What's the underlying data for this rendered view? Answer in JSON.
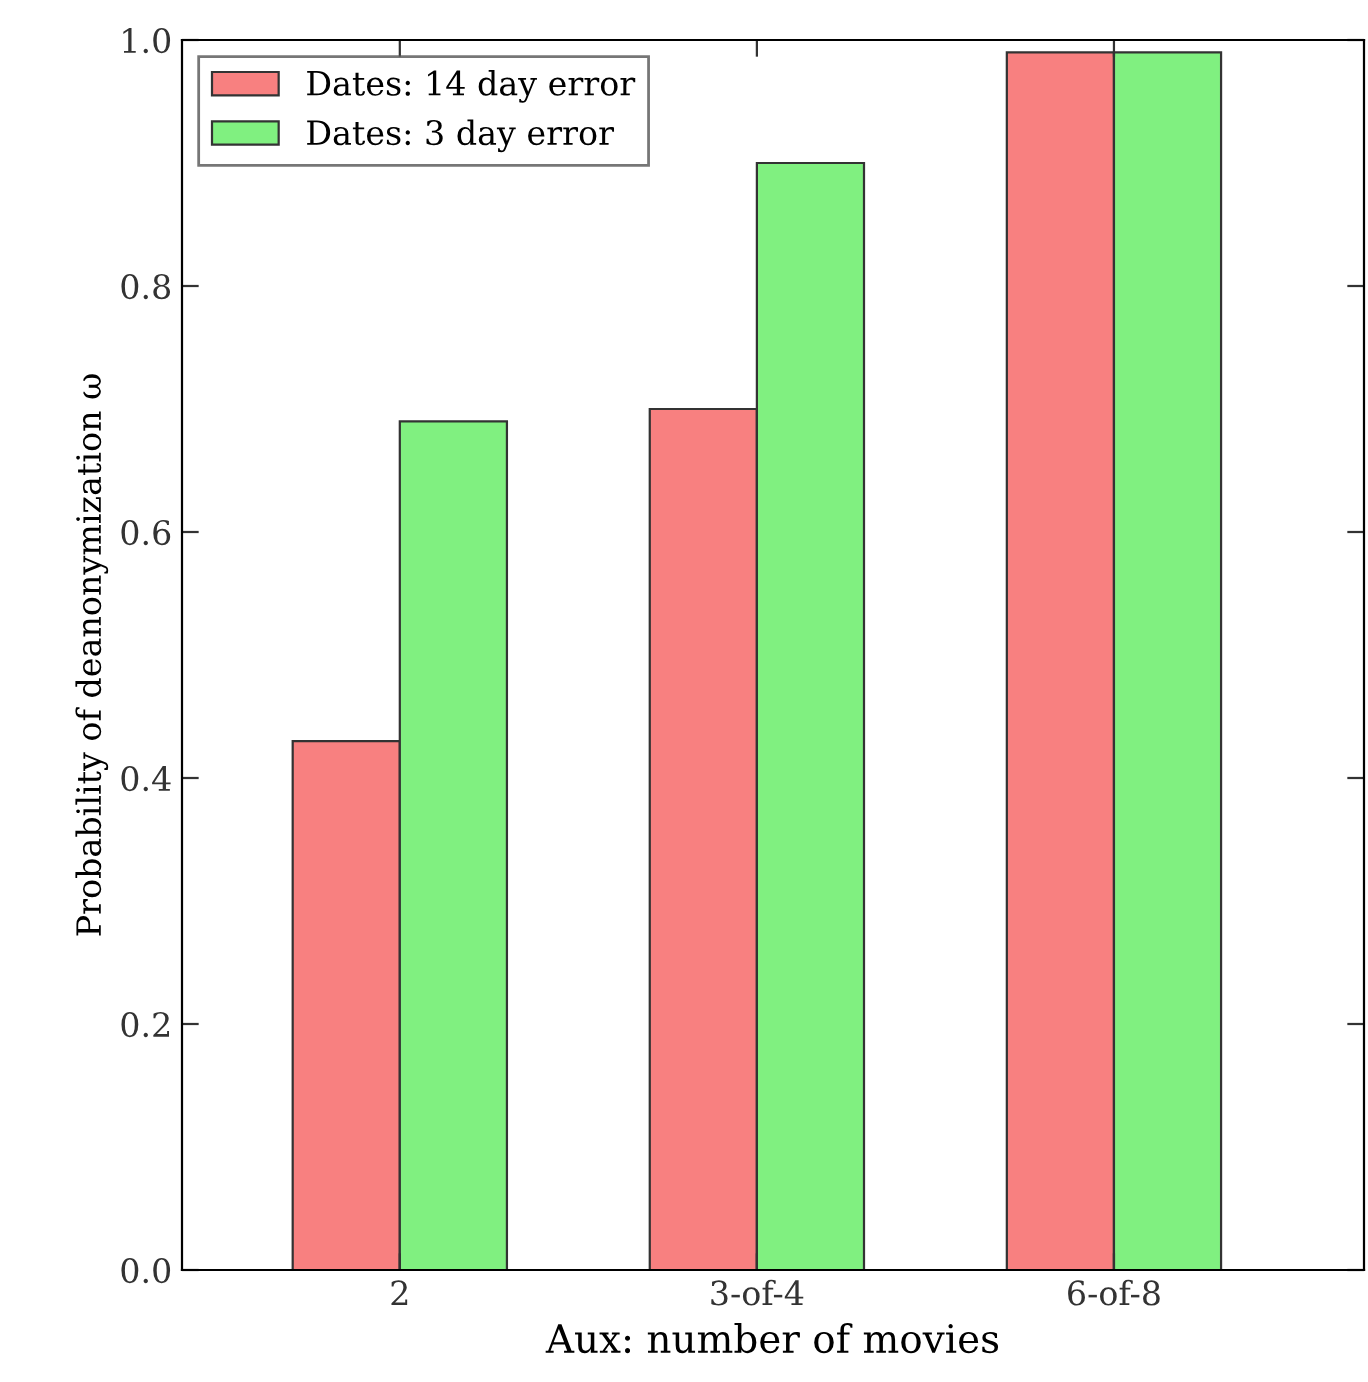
{
  "chart_data": {
    "type": "bar",
    "xlabel": "Aux: number of movies",
    "ylabel": "Probability of deanonymization ω",
    "categories": [
      "2",
      "3-of-4",
      "6-of-8"
    ],
    "series": [
      {
        "name": "Dates: 14 day error",
        "color": "#f88080",
        "values": [
          0.43,
          0.7,
          0.99
        ]
      },
      {
        "name": "Dates: 3 day error",
        "color": "#80f080",
        "values": [
          0.69,
          0.9,
          0.99
        ]
      }
    ],
    "ylim": [
      0.0,
      1.0
    ],
    "yticks": [
      {
        "value": 0.0,
        "label": "0.0"
      },
      {
        "value": 0.2,
        "label": "0.2"
      },
      {
        "value": 0.4,
        "label": "0.4"
      },
      {
        "value": 0.6,
        "label": "0.6"
      },
      {
        "value": 0.8,
        "label": "0.8"
      },
      {
        "value": 1.0,
        "label": "1.0"
      }
    ],
    "legend": "top left",
    "grid": false
  }
}
